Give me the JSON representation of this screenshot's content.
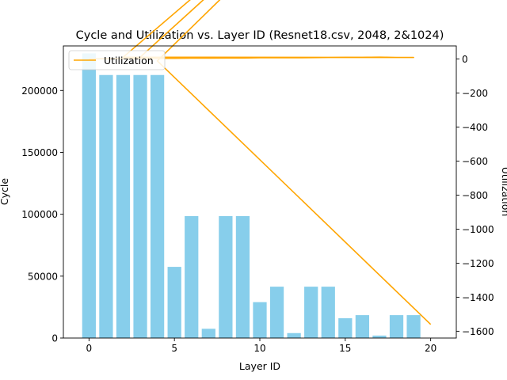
{
  "chart_data": {
    "type": "bar+line",
    "title": "Cycle and Utilization vs. Layer ID (Resnet18.csv, 2048, 2&1024)",
    "xlabel": "Layer ID",
    "ylabel_left": "Cycle",
    "ylabel_right": "Utilization",
    "xlim": [
      -1.5,
      21.5
    ],
    "ylim_left": [
      0,
      236000
    ],
    "ylim_right": [
      -1640,
      77
    ],
    "x_ticks": [
      0,
      5,
      10,
      15,
      20
    ],
    "y_ticks_left": [
      0,
      50000,
      100000,
      150000,
      200000
    ],
    "y_ticks_right": [
      -1600,
      -1400,
      -1200,
      -1000,
      -800,
      -600,
      -400,
      -200,
      0
    ],
    "legend": {
      "label": "Utilization",
      "position": "top-left"
    },
    "colors": {
      "bars": "#87ceeb",
      "line": "#ffa500"
    },
    "bars": {
      "name": "Cycle",
      "x": [
        0,
        1,
        2,
        3,
        4,
        5,
        6,
        7,
        8,
        9,
        10,
        11,
        12,
        13,
        14,
        15,
        16,
        17,
        18,
        19
      ],
      "values": [
        230000,
        212500,
        212500,
        212500,
        212500,
        57500,
        98500,
        7500,
        98500,
        98500,
        29000,
        41500,
        4000,
        41500,
        41500,
        16000,
        18500,
        2000,
        18500,
        18500
      ]
    },
    "line": {
      "name": "Utilization",
      "points": [
        [
          0,
          0
        ],
        [
          1,
          2
        ],
        [
          2,
          3
        ],
        [
          3,
          3
        ],
        [
          4,
          4
        ],
        [
          5,
          4
        ],
        [
          6,
          5
        ],
        [
          7,
          5
        ],
        [
          8,
          6
        ],
        [
          9,
          6
        ],
        [
          10,
          7
        ],
        [
          11,
          7
        ],
        [
          12,
          7
        ],
        [
          13,
          8
        ],
        [
          14,
          9
        ],
        [
          15,
          10
        ],
        [
          16,
          10
        ],
        [
          17,
          11
        ],
        [
          18,
          9
        ],
        [
          19,
          9
        ],
        [
          2,
          11
        ],
        [
          20,
          1560
        ],
        [
          3,
          11
        ],
        [
          20,
          1560
        ],
        [
          4,
          -11
        ],
        [
          20,
          -1560
        ]
      ]
    }
  }
}
